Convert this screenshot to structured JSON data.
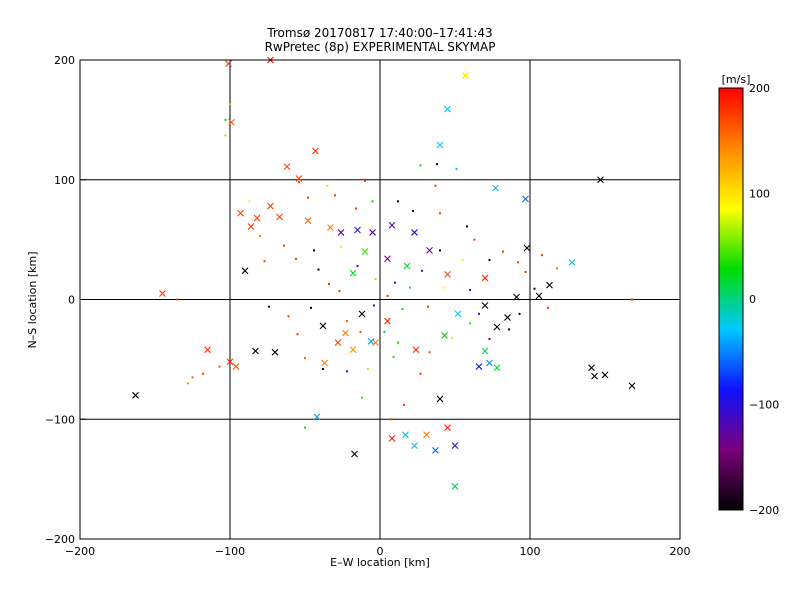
{
  "chart_data": {
    "type": "scatter",
    "title": "Tromsø 20170817 17:40:00–17:41:43",
    "subtitle": "RwPretec (8p) EXPERIMENTAL SKYMAP",
    "xlabel": "E–W location [km]",
    "ylabel": "N–S location [km]",
    "xlim": [
      -200,
      200
    ],
    "ylim": [
      -200,
      200
    ],
    "xticks": [
      -200,
      -100,
      0,
      100,
      200
    ],
    "yticks": [
      -200,
      -100,
      0,
      100,
      200
    ],
    "grid": true,
    "colorbar": {
      "label": "[m/s]",
      "min": -200,
      "max": 200,
      "ticks": [
        200,
        100,
        0,
        -100,
        -200
      ],
      "colormap": [
        "#000000",
        "#7a007a",
        "#1010ff",
        "#00c8ff",
        "#00dd00",
        "#ffff00",
        "#ff8800",
        "#ff0000"
      ]
    },
    "series": [
      {
        "marker": "x",
        "points": [
          [
            -101,
            197,
            180
          ],
          [
            -73,
            200,
            190
          ],
          [
            -99,
            148,
            160
          ],
          [
            -43,
            124,
            180
          ],
          [
            -62,
            111,
            170
          ],
          [
            -54,
            101,
            170
          ],
          [
            45,
            159,
            -30
          ],
          [
            40,
            129,
            -30
          ],
          [
            57,
            187,
            100
          ],
          [
            77,
            93,
            -20
          ],
          [
            97,
            84,
            -60
          ],
          [
            147,
            100,
            -200
          ],
          [
            -93,
            72,
            170
          ],
          [
            -82,
            68,
            170
          ],
          [
            -73,
            78,
            175
          ],
          [
            -86,
            61,
            180
          ],
          [
            -67,
            69,
            170
          ],
          [
            -48,
            66,
            160
          ],
          [
            -33,
            60,
            150
          ],
          [
            -26,
            56,
            -120
          ],
          [
            -15,
            58,
            -110
          ],
          [
            -5,
            56,
            -120
          ],
          [
            8,
            62,
            -120
          ],
          [
            23,
            56,
            -110
          ],
          [
            33,
            41,
            -130
          ],
          [
            18,
            28,
            20
          ],
          [
            -10,
            40,
            40
          ],
          [
            5,
            34,
            -140
          ],
          [
            -18,
            22,
            20
          ],
          [
            45,
            21,
            170
          ],
          [
            70,
            18,
            180
          ],
          [
            98,
            43,
            -200
          ],
          [
            113,
            12,
            -200
          ],
          [
            106,
            3,
            -200
          ],
          [
            91,
            2,
            -200
          ],
          [
            70,
            -5,
            -190
          ],
          [
            85,
            -15,
            -200
          ],
          [
            78,
            -23,
            -190
          ],
          [
            52,
            -12,
            -30
          ],
          [
            43,
            -30,
            30
          ],
          [
            -23,
            -28,
            150
          ],
          [
            -18,
            -42,
            140
          ],
          [
            -3,
            -36,
            150
          ],
          [
            -12,
            -12,
            -200
          ],
          [
            5,
            -18,
            180
          ],
          [
            -38,
            -22,
            -200
          ],
          [
            -28,
            -36,
            170
          ],
          [
            -90,
            24,
            -200
          ],
          [
            -145,
            5,
            180
          ],
          [
            -163,
            -80,
            -200
          ],
          [
            -115,
            -42,
            180
          ],
          [
            -100,
            -52,
            180
          ],
          [
            -96,
            -56,
            160
          ],
          [
            -83,
            -43,
            -200
          ],
          [
            -70,
            -44,
            -200
          ],
          [
            -42,
            -98,
            -40
          ],
          [
            -17,
            -129,
            -200
          ],
          [
            17,
            -113,
            -20
          ],
          [
            23,
            -122,
            -30
          ],
          [
            37,
            -126,
            -60
          ],
          [
            40,
            -83,
            -200
          ],
          [
            50,
            -122,
            -110
          ],
          [
            50,
            -156,
            10
          ],
          [
            45,
            -107,
            190
          ],
          [
            31,
            -113,
            150
          ],
          [
            -6,
            -35,
            -40
          ],
          [
            66,
            -56,
            -80
          ],
          [
            73,
            -53,
            -50
          ],
          [
            78,
            -57,
            20
          ],
          [
            70,
            -43,
            10
          ],
          [
            128,
            31,
            -20
          ],
          [
            141,
            -57,
            -200
          ],
          [
            143,
            -64,
            -200
          ],
          [
            150,
            -63,
            -200
          ],
          [
            168,
            -72,
            -200
          ],
          [
            8,
            -116,
            190
          ],
          [
            -37,
            -53,
            150
          ],
          [
            24,
            -42,
            180
          ]
        ]
      },
      {
        "marker": "dot",
        "points": [
          [
            -100,
            163,
            120
          ],
          [
            -103,
            150,
            20
          ],
          [
            -103,
            137,
            60
          ],
          [
            -54,
            98,
            170
          ],
          [
            27,
            112,
            20
          ],
          [
            38,
            113,
            -200
          ],
          [
            51,
            109,
            -30
          ],
          [
            37,
            95,
            180
          ],
          [
            -35,
            95,
            110
          ],
          [
            -48,
            85,
            170
          ],
          [
            -30,
            87,
            180
          ],
          [
            -10,
            99,
            180
          ],
          [
            -87,
            82,
            80
          ],
          [
            -80,
            53,
            140
          ],
          [
            -64,
            45,
            170
          ],
          [
            -56,
            34,
            180
          ],
          [
            -77,
            32,
            180
          ],
          [
            -44,
            41,
            -200
          ],
          [
            -41,
            25,
            -200
          ],
          [
            -34,
            13,
            180
          ],
          [
            -27,
            7,
            180
          ],
          [
            -74,
            -6,
            -200
          ],
          [
            -61,
            -14,
            180
          ],
          [
            -46,
            -7,
            -200
          ],
          [
            -16,
            76,
            180
          ],
          [
            -5,
            82,
            30
          ],
          [
            12,
            82,
            -200
          ],
          [
            22,
            74,
            -200
          ],
          [
            40,
            72,
            180
          ],
          [
            58,
            61,
            -200
          ],
          [
            63,
            50,
            180
          ],
          [
            73,
            33,
            -200
          ],
          [
            82,
            40,
            180
          ],
          [
            92,
            31,
            170
          ],
          [
            97,
            23,
            180
          ],
          [
            103,
            9,
            -200
          ],
          [
            112,
            -7,
            180
          ],
          [
            93,
            -12,
            -200
          ],
          [
            73,
            -33,
            -120
          ],
          [
            60,
            -20,
            40
          ],
          [
            48,
            -32,
            100
          ],
          [
            33,
            -44,
            170
          ],
          [
            27,
            -62,
            180
          ],
          [
            9,
            -48,
            40
          ],
          [
            -8,
            -58,
            70
          ],
          [
            -22,
            -60,
            -120
          ],
          [
            -38,
            -58,
            -200
          ],
          [
            -50,
            -49,
            160
          ],
          [
            -55,
            -29,
            180
          ],
          [
            16,
            -88,
            180
          ],
          [
            7,
            -100,
            180
          ],
          [
            -12,
            -82,
            40
          ],
          [
            -50,
            -107,
            20
          ],
          [
            -125,
            -65,
            160
          ],
          [
            -118,
            -62,
            170
          ],
          [
            -107,
            -56,
            170
          ],
          [
            -128,
            -70,
            140
          ],
          [
            -135,
            0,
            170
          ],
          [
            168,
            0,
            180
          ],
          [
            118,
            26,
            150
          ],
          [
            108,
            37,
            180
          ],
          [
            20,
            10,
            0
          ],
          [
            28,
            24,
            -130
          ],
          [
            10,
            14,
            -110
          ],
          [
            5,
            3,
            180
          ],
          [
            -3,
            17,
            60
          ],
          [
            15,
            -8,
            20
          ],
          [
            32,
            -6,
            180
          ],
          [
            -22,
            -18,
            160
          ],
          [
            -13,
            -27,
            170
          ],
          [
            3,
            -27,
            10
          ],
          [
            12,
            -36,
            30
          ],
          [
            40,
            41,
            -200
          ],
          [
            55,
            33,
            100
          ],
          [
            -4,
            -5,
            -120
          ],
          [
            -26,
            44,
            100
          ],
          [
            -15,
            28,
            -90
          ],
          [
            43,
            10,
            90
          ],
          [
            60,
            8,
            -110
          ],
          [
            66,
            -12,
            -90
          ],
          [
            86,
            -25,
            -200
          ]
        ]
      }
    ]
  }
}
